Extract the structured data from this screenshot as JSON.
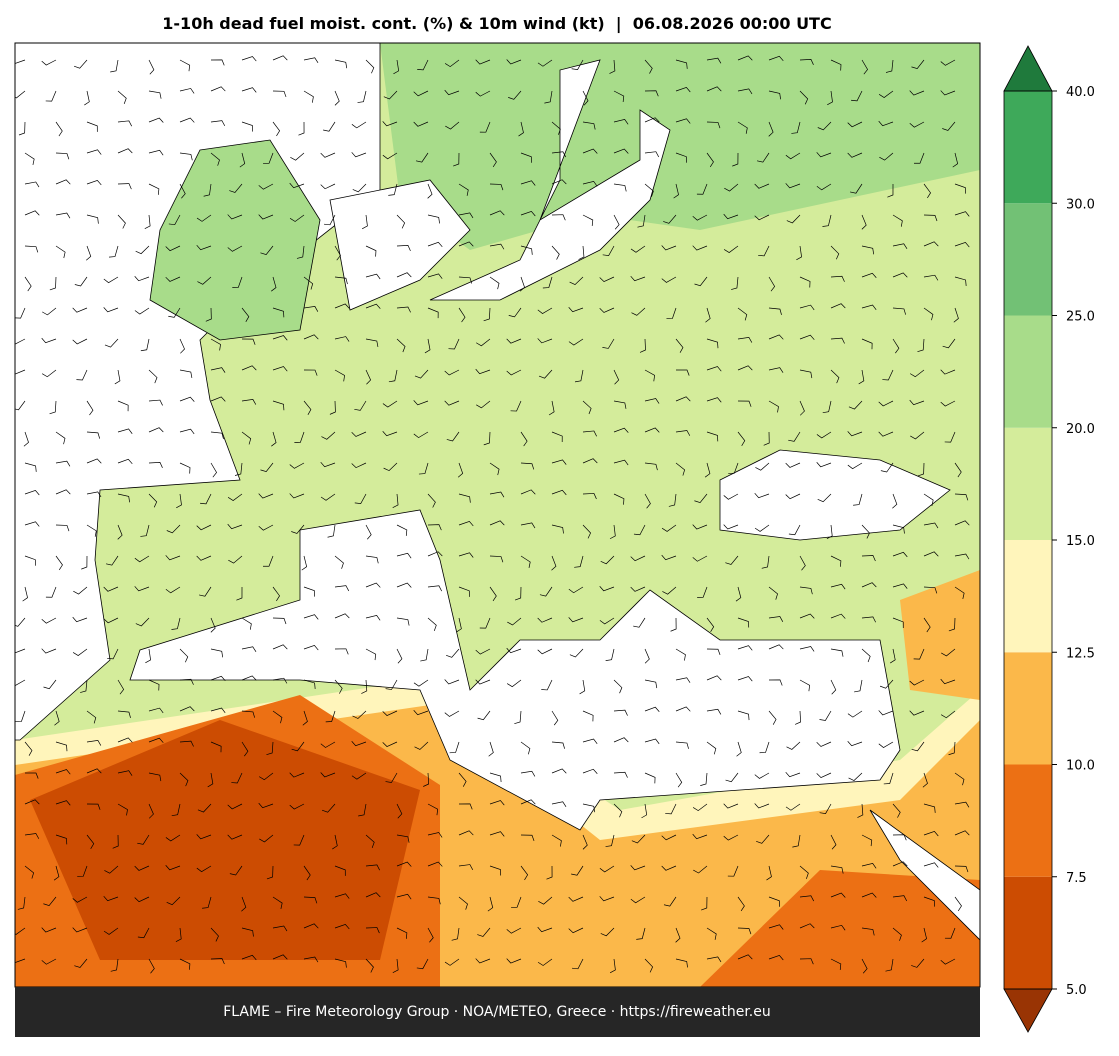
{
  "title": "1-10h dead fuel moist. cont. (%) & 10m wind (kt)  |  06.08.2026 00:00 UTC",
  "footer": "FLAME – Fire Meteorology Group · NOA/METEO, Greece · https://fireweather.eu",
  "colorbar": {
    "ticks": [
      {
        "value": 5,
        "label": "5.0"
      },
      {
        "value": 7.5,
        "label": "7.5"
      },
      {
        "value": 10,
        "label": "10.0"
      },
      {
        "value": 12.5,
        "label": "12.5"
      },
      {
        "value": 15,
        "label": "15.0"
      },
      {
        "value": 20,
        "label": "20.0"
      },
      {
        "value": 25,
        "label": "25.0"
      },
      {
        "value": 30,
        "label": "30.0"
      },
      {
        "value": 40,
        "label": "40.0"
      }
    ],
    "colors": [
      "#cc4c02",
      "#ec7014",
      "#fbb84a",
      "#fff5bb",
      "#d4ec9b",
      "#a8dc8a",
      "#72c175",
      "#3ea95a"
    ],
    "under_color": "#993404",
    "over_color": "#1f7a3c"
  }
}
